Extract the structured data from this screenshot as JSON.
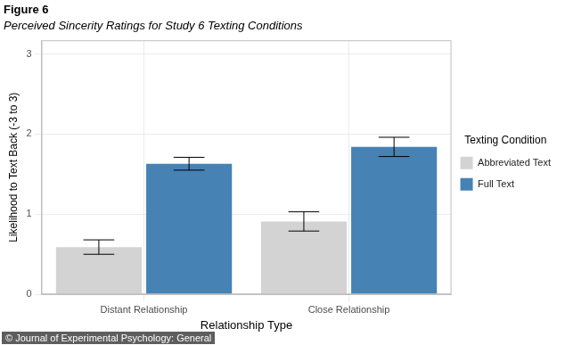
{
  "chart_data": {
    "type": "bar",
    "title": "Figure 6",
    "subtitle": "Perceived Sincerity Ratings for Study 6 Texting Conditions",
    "x_label": "Relationship Type",
    "y_label": "Likelihood to Text Back (-3 to 3)",
    "categories": [
      "Distant Relationship",
      "Close Relationship"
    ],
    "series": [
      {
        "name": "Abbreviated Text",
        "color": "#d3d3d3",
        "values": [
          0.59,
          0.91
        ],
        "errors": [
          0.09,
          0.12
        ]
      },
      {
        "name": "Full Text",
        "color": "#4682b4",
        "values": [
          1.63,
          1.84
        ],
        "errors": [
          0.08,
          0.12
        ]
      }
    ],
    "ylim": [
      0,
      3.17
    ],
    "yticks": [
      0,
      1,
      2,
      3
    ],
    "grid": true,
    "legend": "right",
    "legend_title": "Texting Condition",
    "annotations": [
      "© Journal of Experimental Psychology: General"
    ]
  }
}
